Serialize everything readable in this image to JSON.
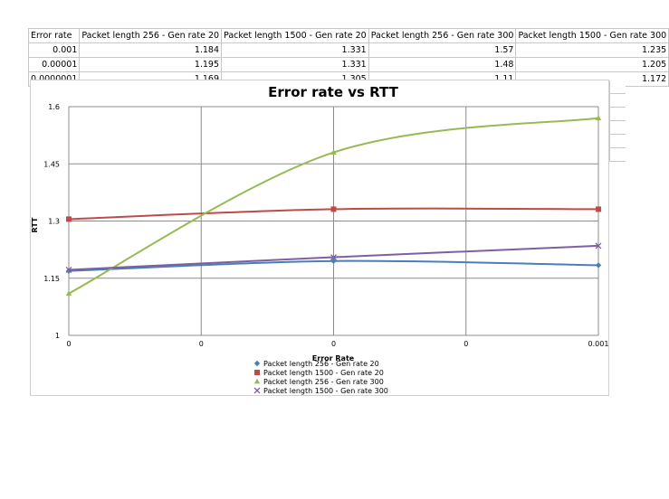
{
  "table": {
    "headers": [
      "Error rate",
      "Packet length 256 - Gen rate 20",
      "Packet length 1500 - Gen rate 20",
      "Packet length 256 - Gen rate 300",
      "Packet length 1500 - Gen rate 300"
    ],
    "rows": [
      [
        "0.001",
        "1.184",
        "1.331",
        "1.57",
        "1.235"
      ],
      [
        "0.00001",
        "1.195",
        "1.331",
        "1.48",
        "1.205"
      ],
      [
        "0.0000001",
        "1.169",
        "1.305",
        "1.11",
        "1.172"
      ]
    ]
  },
  "chart_data": {
    "type": "line",
    "title": "Error rate vs RTT",
    "xlabel": "Error Rate",
    "ylabel": "RTT",
    "x_tick_labels": [
      "0",
      "0",
      "0",
      "0",
      "0.001"
    ],
    "x": [
      1e-07,
      1e-05,
      0.001
    ],
    "x_plot_positions": [
      0,
      2,
      4
    ],
    "y_ticks": [
      1,
      1.15,
      1.3,
      1.45,
      1.6
    ],
    "y_tick_labels": [
      "1",
      "1.15",
      "1.3",
      "1.45",
      "1.6"
    ],
    "ylim": [
      1,
      1.6
    ],
    "grid": true,
    "legend_position": "bottom",
    "series": [
      {
        "name": "Packet length 256 - Gen rate 20",
        "values": [
          1.169,
          1.195,
          1.184
        ],
        "color": "#4a7ebb",
        "marker": "diamond"
      },
      {
        "name": "Packet length 1500 - Gen rate 20",
        "values": [
          1.305,
          1.331,
          1.331
        ],
        "color": "#be4b48",
        "marker": "square"
      },
      {
        "name": "Packet length 256 - Gen rate 300",
        "values": [
          1.11,
          1.48,
          1.57
        ],
        "color": "#98b954",
        "marker": "triangle"
      },
      {
        "name": "Packet length 1500 - Gen rate 300",
        "values": [
          1.172,
          1.205,
          1.235
        ],
        "color": "#7d60a0",
        "marker": "cross"
      }
    ]
  }
}
